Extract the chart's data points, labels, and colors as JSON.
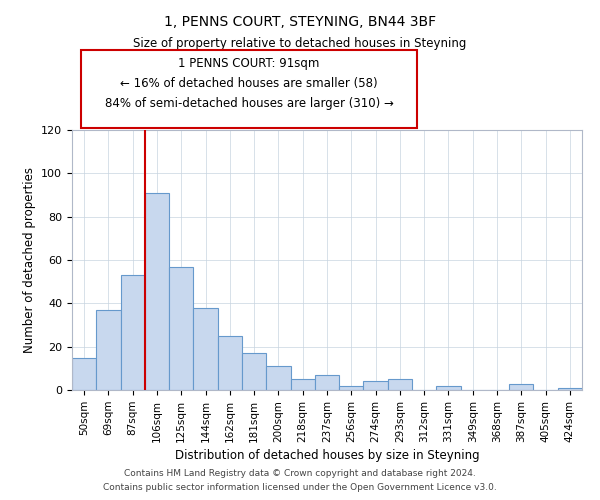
{
  "title": "1, PENNS COURT, STEYNING, BN44 3BF",
  "subtitle": "Size of property relative to detached houses in Steyning",
  "xlabel": "Distribution of detached houses by size in Steyning",
  "ylabel": "Number of detached properties",
  "bar_labels": [
    "50sqm",
    "69sqm",
    "87sqm",
    "106sqm",
    "125sqm",
    "144sqm",
    "162sqm",
    "181sqm",
    "200sqm",
    "218sqm",
    "237sqm",
    "256sqm",
    "274sqm",
    "293sqm",
    "312sqm",
    "331sqm",
    "349sqm",
    "368sqm",
    "387sqm",
    "405sqm",
    "424sqm"
  ],
  "bar_values": [
    15,
    37,
    53,
    91,
    57,
    38,
    25,
    17,
    11,
    5,
    7,
    2,
    4,
    5,
    0,
    2,
    0,
    0,
    3,
    0,
    1
  ],
  "bar_color": "#c8d8ee",
  "bar_edge_color": "#6699cc",
  "vline_x": 2.5,
  "vline_color": "#cc0000",
  "annotation_title": "1 PENNS COURT: 91sqm",
  "annotation_line1": "← 16% of detached houses are smaller (58)",
  "annotation_line2": "84% of semi-detached houses are larger (310) →",
  "annotation_box_color": "#ffffff",
  "annotation_box_edge": "#cc0000",
  "ylim": [
    0,
    120
  ],
  "yticks": [
    0,
    20,
    40,
    60,
    80,
    100,
    120
  ],
  "footer1": "Contains HM Land Registry data © Crown copyright and database right 2024.",
  "footer2": "Contains public sector information licensed under the Open Government Licence v3.0."
}
